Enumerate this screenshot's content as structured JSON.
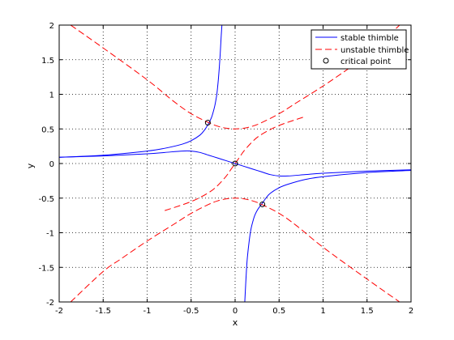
{
  "chart_data": {
    "type": "line",
    "title": "",
    "xlabel": "x",
    "ylabel": "y",
    "xlim": [
      -2,
      2
    ],
    "ylim": [
      -2,
      2
    ],
    "grid": true,
    "grid_style": "dotted",
    "legend_position": "top-right",
    "x_ticks": [
      -2,
      -1.5,
      -1,
      -0.5,
      0,
      0.5,
      1,
      1.5,
      2
    ],
    "x_tick_labels": [
      "-2",
      "-1.5",
      "-1",
      "-0.5",
      "0",
      "0.5",
      "1",
      "1.5",
      "2"
    ],
    "y_ticks": [
      -2,
      -1.5,
      -1,
      -0.5,
      0,
      0.5,
      1,
      1.5,
      2
    ],
    "y_tick_labels": [
      "-2",
      "-1.5",
      "-1",
      "-0.5",
      "0",
      "0.5",
      "1",
      "1.5",
      "2"
    ],
    "legend": [
      {
        "label": "stable thimble",
        "color": "#0000ff",
        "style": "solid"
      },
      {
        "label": "unstable thimble",
        "color": "#ff0000",
        "style": "dashed"
      },
      {
        "label": "critical point",
        "color": "#000000",
        "style": "circle-marker"
      }
    ],
    "series": [
      {
        "name": "stable thimble",
        "color": "#0000ff",
        "style": "solid",
        "x": [
          -2,
          -1.5,
          -1,
          -0.8,
          -0.6,
          -0.5,
          -0.4,
          -0.3,
          -0.2,
          -0.1,
          0,
          0.1,
          0.2,
          0.3,
          0.4,
          0.5,
          0.6,
          0.8,
          1,
          1.5,
          2
        ],
        "y": [
          0.09,
          0.11,
          0.14,
          0.16,
          0.18,
          0.18,
          0.16,
          0.12,
          0.08,
          0.04,
          0,
          -0.04,
          -0.08,
          -0.12,
          -0.16,
          -0.18,
          -0.18,
          -0.16,
          -0.14,
          -0.11,
          -0.09
        ]
      },
      {
        "name": "stable thimble",
        "color": "#0000ff",
        "style": "solid",
        "x": [
          -2,
          -1.5,
          -1,
          -0.8,
          -0.6,
          -0.5,
          -0.4,
          -0.35,
          -0.3,
          -0.27,
          -0.25,
          -0.23,
          -0.21,
          -0.2,
          -0.19,
          -0.18,
          -0.17,
          -0.16,
          -0.15
        ],
        "y": [
          0.09,
          0.12,
          0.18,
          0.22,
          0.28,
          0.33,
          0.41,
          0.48,
          0.58,
          0.66,
          0.74,
          0.84,
          0.98,
          1.09,
          1.22,
          1.38,
          1.57,
          1.8,
          2.0
        ]
      },
      {
        "name": "stable thimble",
        "color": "#0000ff",
        "style": "solid",
        "x": [
          0.11,
          0.12,
          0.13,
          0.14,
          0.16,
          0.18,
          0.21,
          0.23,
          0.25,
          0.27,
          0.3,
          0.35,
          0.4,
          0.5,
          0.6,
          0.8,
          1,
          1.5,
          2
        ],
        "y": [
          -2.0,
          -1.75,
          -1.52,
          -1.35,
          -1.12,
          -0.95,
          -0.8,
          -0.73,
          -0.68,
          -0.64,
          -0.59,
          -0.5,
          -0.43,
          -0.35,
          -0.3,
          -0.23,
          -0.19,
          -0.13,
          -0.1
        ]
      },
      {
        "name": "unstable thimble",
        "color": "#ff0000",
        "style": "dashed",
        "x": [
          -1.87,
          -1.5,
          -1.0,
          -0.7,
          -0.5,
          -0.3,
          -0.2,
          -0.1,
          0,
          0.1,
          0.2,
          0.3,
          0.5,
          0.7,
          1.0,
          1.3,
          1.5,
          1.87
        ],
        "y": [
          2.0,
          1.67,
          1.21,
          0.9,
          0.72,
          0.59,
          0.54,
          0.51,
          0.5,
          0.51,
          0.54,
          0.59,
          0.72,
          0.88,
          1.12,
          1.38,
          1.56,
          2.0
        ]
      },
      {
        "name": "unstable thimble",
        "color": "#ff0000",
        "style": "dashed",
        "x": [
          -1.87,
          -1.5,
          -1.3,
          -1.0,
          -0.7,
          -0.5,
          -0.3,
          -0.2,
          -0.1,
          0,
          0.1,
          0.2,
          0.3,
          0.5,
          0.7,
          1.0,
          1.5,
          1.87
        ],
        "y": [
          -2.0,
          -1.56,
          -1.38,
          -1.12,
          -0.88,
          -0.72,
          -0.59,
          -0.54,
          -0.51,
          -0.5,
          -0.51,
          -0.54,
          -0.59,
          -0.72,
          -0.9,
          -1.21,
          -1.67,
          -2.0
        ]
      },
      {
        "name": "unstable thimble",
        "color": "#ff0000",
        "style": "dashed",
        "x": [
          -0.8,
          -0.5,
          -0.3,
          -0.2,
          -0.1,
          -0.05,
          0,
          0.05,
          0.1,
          0.2,
          0.3,
          0.5,
          0.8
        ],
        "y": [
          -0.68,
          -0.55,
          -0.42,
          -0.32,
          -0.18,
          -0.09,
          0,
          0.09,
          0.18,
          0.32,
          0.42,
          0.55,
          0.68
        ]
      }
    ],
    "critical_points": {
      "name": "critical point",
      "x": [
        -0.31,
        0,
        0.31
      ],
      "y": [
        0.59,
        0,
        -0.59
      ]
    }
  }
}
